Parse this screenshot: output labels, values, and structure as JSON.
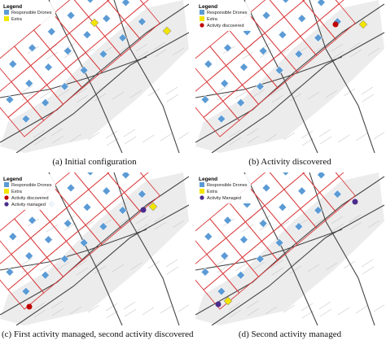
{
  "panels": [
    {
      "legend": {
        "title": "Legend",
        "items": [
          {
            "label": "Responsible Drones",
            "color": "#5b9bd5"
          },
          {
            "label": "Extra",
            "color": "#f2e600"
          }
        ]
      },
      "caption": "(a) Initial configuration"
    },
    {
      "legend": {
        "title": "Legend",
        "items": [
          {
            "label": "Responsible Drones",
            "color": "#5b9bd5"
          },
          {
            "label": "Extra",
            "color": "#f2e600"
          },
          {
            "label": "Activity discovered",
            "color": "#c00000"
          }
        ]
      },
      "caption": "(b) Activity discovered"
    },
    {
      "legend": {
        "title": "Legend",
        "items": [
          {
            "label": "Responsible Drones",
            "color": "#5b9bd5"
          },
          {
            "label": "Extra",
            "color": "#f2e600"
          },
          {
            "label": "Activity discovered",
            "color": "#c00000"
          },
          {
            "label": "Activity managed",
            "color": "#4b2c8c"
          }
        ]
      },
      "caption": "(c) First activity managed, second activity discovered"
    },
    {
      "legend": {
        "title": "Legend",
        "items": [
          {
            "label": "Responsible Drones",
            "color": "#5b9bd5"
          },
          {
            "label": "Extra",
            "color": "#f2e600"
          },
          {
            "label": "Activity Managed",
            "color": "#4b2c8c"
          }
        ]
      },
      "caption": "(d) Second activity managed"
    }
  ]
}
